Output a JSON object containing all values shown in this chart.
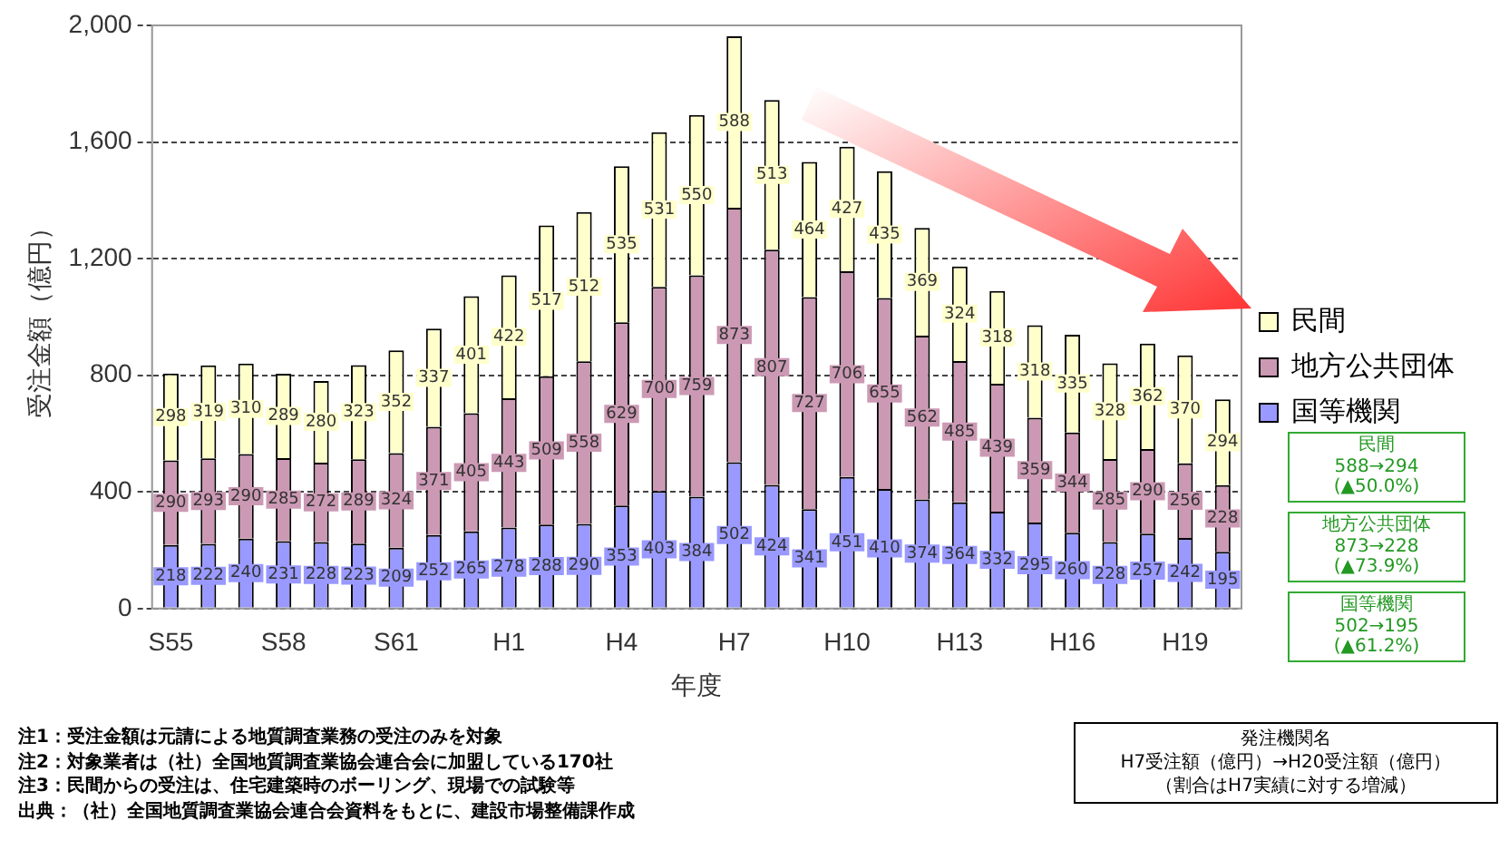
{
  "chart_data": {
    "type": "bar",
    "stacked": true,
    "ylabel": "受注金額（億円）",
    "xlabel": "年度",
    "categories": [
      "S55",
      null,
      null,
      "S58",
      null,
      null,
      "S61",
      null,
      null,
      "H1",
      null,
      null,
      "H4",
      null,
      null,
      "H7",
      null,
      null,
      "H10",
      null,
      null,
      "H13",
      null,
      null,
      "H16",
      null,
      null,
      "H19",
      null
    ],
    "series": [
      {
        "name": "国等機関",
        "color": "#9999ff",
        "values": [
          218,
          222,
          240,
          231,
          228,
          223,
          209,
          252,
          265,
          278,
          288,
          290,
          353,
          403,
          384,
          502,
          424,
          341,
          451,
          410,
          374,
          364,
          332,
          295,
          260,
          228,
          257,
          242,
          195
        ]
      },
      {
        "name": "地方公共団体",
        "color": "#cc99b4",
        "values": [
          290,
          293,
          290,
          285,
          272,
          289,
          324,
          371,
          405,
          443,
          509,
          558,
          629,
          700,
          759,
          873,
          807,
          727,
          706,
          655,
          562,
          485,
          439,
          359,
          344,
          285,
          290,
          256,
          228
        ]
      },
      {
        "name": "民間",
        "color": "#ffffcc",
        "values": [
          298,
          319,
          310,
          289,
          280,
          323,
          352,
          337,
          401,
          422,
          517,
          512,
          535,
          531,
          550,
          588,
          513,
          464,
          427,
          435,
          369,
          324,
          318,
          318,
          335,
          328,
          362,
          370,
          294
        ]
      }
    ],
    "ylim": [
      0,
      2000
    ],
    "yticks": [
      0,
      400,
      800,
      {
        "value": 1200,
        "label": "1,200"
      },
      {
        "value": 1600,
        "label": "1,600"
      },
      {
        "value": 2000,
        "label": "2,000"
      }
    ],
    "grid": "y",
    "legend": "right",
    "data_labels": true,
    "annotations": [
      "民間\n588→294\n(▲50.0%)",
      "地方公共団体\n873→228\n(▲73.9%)",
      "国等機関\n502→195\n(▲61.2%)",
      "発注機関名",
      "H7受注額（億円）→H20受注額（億円）",
      "（割合はH7実績に対する増減）",
      "注1：受注金額は元請による地質調査業務の受注のみを対象",
      "注2：対象業者は（社）全国地質調査業協会連合会に加盟している170社",
      "注3：民間からの受注は、住宅建築時のボーリング、現場での試験等",
      "出典：（社）全国地質調査業協会連合会資料をもとに、建設市場整備課作成"
    ]
  }
}
